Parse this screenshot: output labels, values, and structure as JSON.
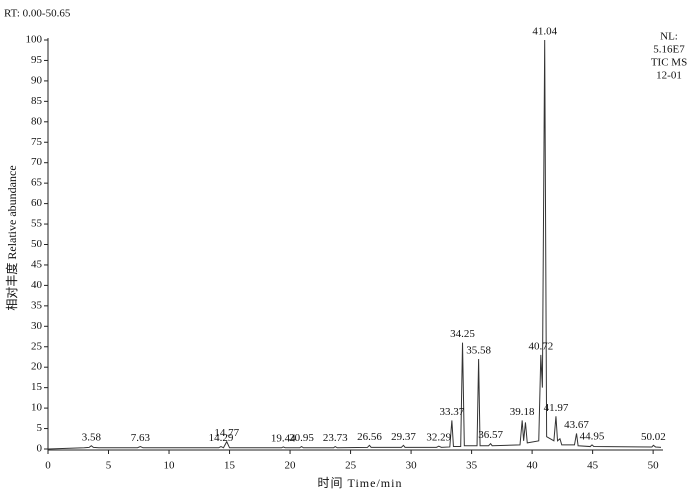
{
  "chart_data": {
    "type": "line",
    "subtitle": "RT: 0.00-50.65",
    "info": [
      "NL:",
      "5.16E7",
      "TIC MS",
      "12-01"
    ],
    "x_label": "时间 Time/min",
    "y_label": "相对丰度  Relative abundance",
    "x": [
      0,
      3.0,
      3.4,
      3.58,
      3.75,
      4.2,
      7.4,
      7.63,
      7.85,
      14.1,
      14.29,
      14.5,
      14.77,
      15.0,
      19.3,
      19.44,
      19.6,
      20.8,
      20.95,
      21.1,
      23.6,
      23.73,
      23.9,
      26.4,
      26.56,
      26.7,
      29.2,
      29.37,
      29.5,
      32.1,
      32.29,
      32.5,
      33.2,
      33.37,
      33.5,
      34.1,
      34.25,
      34.4,
      35.45,
      35.58,
      35.7,
      36.4,
      36.57,
      36.7,
      39.0,
      39.18,
      39.3,
      39.45,
      39.6,
      40.55,
      40.72,
      40.85,
      41.04,
      41.2,
      41.8,
      41.97,
      42.1,
      42.3,
      42.45,
      43.5,
      43.67,
      43.8,
      44.8,
      44.95,
      45.1,
      49.9,
      50.02,
      50.2,
      50.65
    ],
    "series": [
      {
        "name": "TIC",
        "color": "#333333",
        "values": [
          0,
          0.3,
          0.4,
          0.8,
          0.4,
          0.3,
          0.3,
          0.6,
          0.3,
          0.3,
          0.6,
          0.3,
          1.8,
          0.3,
          0.3,
          0.5,
          0.3,
          0.3,
          0.6,
          0.3,
          0.3,
          0.6,
          0.3,
          0.4,
          0.9,
          0.4,
          0.4,
          0.9,
          0.4,
          0.4,
          0.7,
          0.4,
          0.5,
          7,
          0.6,
          0.6,
          26,
          0.8,
          0.8,
          22,
          0.8,
          0.8,
          1.3,
          0.8,
          1,
          7,
          2,
          6.5,
          1.5,
          2,
          23,
          15,
          100,
          3,
          2,
          8,
          2,
          2.5,
          1,
          1,
          3.8,
          0.8,
          0.6,
          1,
          0.6,
          0.5,
          0.9,
          0.5,
          0.4
        ]
      }
    ],
    "peak_labels": [
      3.58,
      7.63,
      14.29,
      14.77,
      19.44,
      20.95,
      23.73,
      26.56,
      29.37,
      32.29,
      33.37,
      34.25,
      35.58,
      36.57,
      39.18,
      40.72,
      41.04,
      41.97,
      43.67,
      44.95,
      50.02
    ],
    "xlim": [
      0,
      50.65
    ],
    "xticks": [
      0,
      5,
      10,
      15,
      20,
      25,
      30,
      35,
      40,
      45,
      50
    ],
    "ylim": [
      0,
      100
    ],
    "yticks": [
      0,
      5,
      10,
      15,
      20,
      25,
      30,
      35,
      40,
      45,
      50,
      55,
      60,
      65,
      70,
      75,
      80,
      85,
      90,
      95,
      100
    ],
    "grid": false
  }
}
